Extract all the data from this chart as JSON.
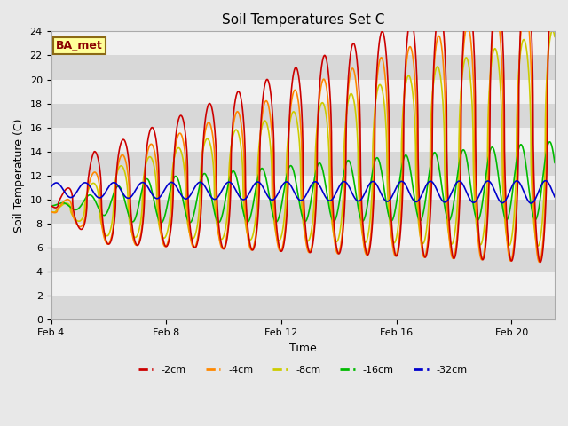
{
  "title": "Soil Temperatures Set C",
  "xlabel": "Time",
  "ylabel": "Soil Temperature (C)",
  "ylim": [
    0,
    24
  ],
  "yticks": [
    0,
    2,
    4,
    6,
    8,
    10,
    12,
    14,
    16,
    18,
    20,
    22,
    24
  ],
  "x_tick_days": [
    4,
    8,
    12,
    16,
    20
  ],
  "x_tick_labels": [
    "Feb 4",
    "Feb 8",
    "Feb 12",
    "Feb 16",
    "Feb 20"
  ],
  "xlim": [
    4,
    21.5
  ],
  "annotation_text": "BA_met",
  "colors": {
    "-2cm": "#cc0000",
    "-4cm": "#ff8800",
    "-8cm": "#cccc00",
    "-16cm": "#00bb00",
    "-32cm": "#0000cc"
  },
  "background_color": "#e8e8e8",
  "plot_bg_color": "#d8d8d8",
  "white_band_color": "#f0f0f0",
  "linewidth": 1.2,
  "figsize": [
    6.4,
    4.8
  ],
  "dpi": 100
}
